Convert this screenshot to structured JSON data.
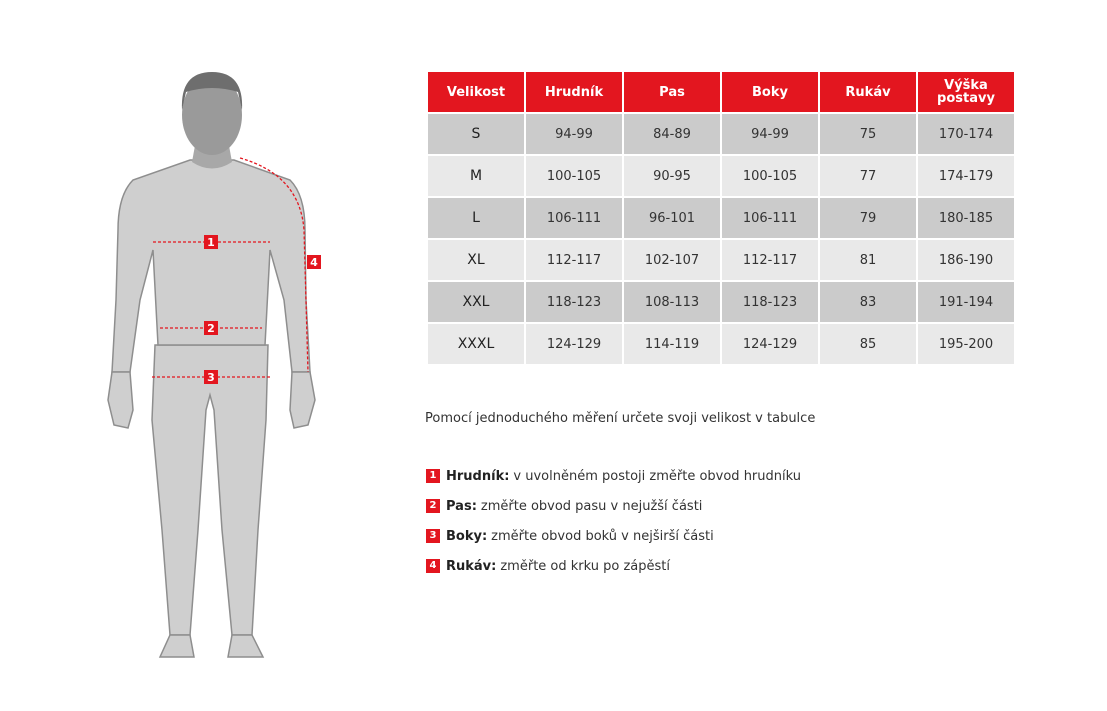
{
  "colors": {
    "accent": "#e3161f",
    "figure": "#cfcfcf",
    "head": "#8a8a8a"
  },
  "table": {
    "headers": [
      "Velikost",
      "Hrudník",
      "Pas",
      "Boky",
      "Rukáv",
      "Výška postavy"
    ],
    "rows": [
      [
        "S",
        "94-99",
        "84-89",
        "94-99",
        "75",
        "170-174"
      ],
      [
        "M",
        "100-105",
        "90-95",
        "100-105",
        "77",
        "174-179"
      ],
      [
        "L",
        "106-111",
        "96-101",
        "106-111",
        "79",
        "180-185"
      ],
      [
        "XL",
        "112-117",
        "102-107",
        "112-117",
        "81",
        "186-190"
      ],
      [
        "XXL",
        "118-123",
        "108-113",
        "118-123",
        "83",
        "191-194"
      ],
      [
        "XXXL",
        "124-129",
        "114-119",
        "124-129",
        "85",
        "195-200"
      ]
    ]
  },
  "intro": "Pomocí jednoduchého měření určete svoji velikost v tabulce",
  "legend": [
    {
      "num": "1",
      "term": "Hrudník:",
      "text": "v uvolněném postoji změřte obvod hrudníku"
    },
    {
      "num": "2",
      "term": "Pas:",
      "text": "změřte obvod pasu v nejužší části"
    },
    {
      "num": "3",
      "term": "Boky:",
      "text": "změřte obvod boků v nejširší části"
    },
    {
      "num": "4",
      "term": "Rukáv:",
      "text": "změřte od krku po zápěstí"
    }
  ],
  "figure_markers": [
    "1",
    "2",
    "3",
    "4"
  ]
}
